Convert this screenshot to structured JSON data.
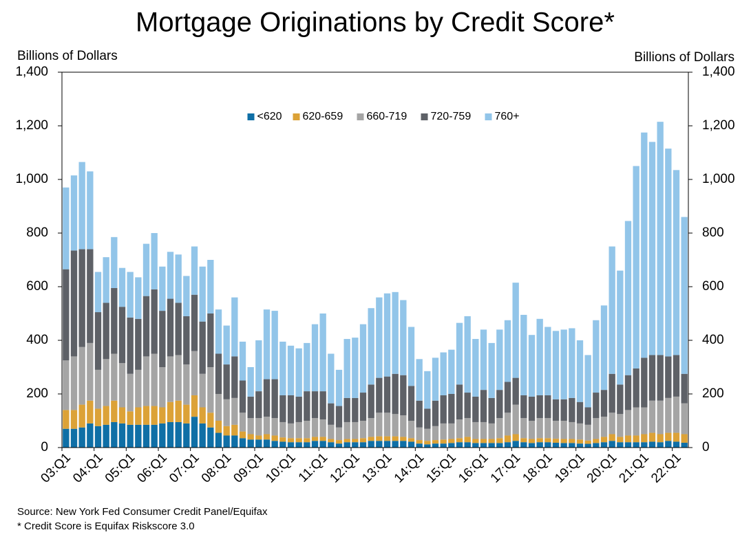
{
  "chart_data": {
    "type": "stacked_bar",
    "title": "Mortgage Originations by Credit Score*",
    "y_label": "Billions of Dollars",
    "y2_label": "Billions of Dollars",
    "source": "Source: New York Fed Consumer Credit Panel/Equifax",
    "note": "* Credit Score is Equifax Riskscore 3.0",
    "categories": [
      "03:Q1",
      null,
      null,
      null,
      "04:Q1",
      null,
      null,
      null,
      "05:Q1",
      null,
      null,
      null,
      "06:Q1",
      null,
      null,
      null,
      "07:Q1",
      null,
      null,
      null,
      "08:Q1",
      null,
      null,
      null,
      "09:Q1",
      null,
      null,
      null,
      "10:Q1",
      null,
      null,
      null,
      "11:Q1",
      null,
      null,
      null,
      "12:Q1",
      null,
      null,
      null,
      "13:Q1",
      null,
      null,
      null,
      "14:Q1",
      null,
      null,
      null,
      "15:Q1",
      null,
      null,
      null,
      "16:Q1",
      null,
      null,
      null,
      "17:Q1",
      null,
      null,
      null,
      "18:Q1",
      null,
      null,
      null,
      "19:Q1",
      null,
      null,
      null,
      "20:Q1",
      null,
      null,
      null,
      "21:Q1",
      null,
      null,
      null,
      "22:Q1",
      null
    ],
    "series": [
      {
        "name": "<620",
        "color": "#0f6fa6",
        "values": [
          70,
          70,
          75,
          90,
          80,
          85,
          95,
          90,
          85,
          85,
          85,
          85,
          90,
          95,
          95,
          90,
          115,
          90,
          75,
          55,
          45,
          45,
          35,
          30,
          30,
          30,
          25,
          22,
          20,
          20,
          20,
          25,
          25,
          20,
          15,
          20,
          20,
          20,
          25,
          25,
          25,
          25,
          25,
          22,
          15,
          12,
          15,
          15,
          17,
          20,
          20,
          17,
          17,
          17,
          17,
          20,
          25,
          20,
          17,
          20,
          20,
          18,
          17,
          17,
          15,
          14,
          17,
          20,
          25,
          20,
          20,
          20,
          20,
          22,
          20,
          25,
          22,
          18
        ]
      },
      {
        "name": "620-659",
        "color": "#dca237",
        "values": [
          70,
          70,
          85,
          85,
          65,
          70,
          80,
          60,
          50,
          65,
          70,
          70,
          60,
          75,
          80,
          70,
          80,
          60,
          55,
          45,
          35,
          40,
          25,
          20,
          15,
          20,
          20,
          16,
          15,
          15,
          15,
          15,
          15,
          12,
          13,
          12,
          12,
          15,
          15,
          17,
          17,
          17,
          15,
          13,
          13,
          13,
          13,
          15,
          15,
          15,
          20,
          15,
          15,
          15,
          18,
          25,
          25,
          15,
          15,
          15,
          15,
          15,
          15,
          15,
          15,
          12,
          15,
          20,
          25,
          20,
          25,
          25,
          30,
          33,
          30,
          30,
          33,
          32
        ]
      },
      {
        "name": "660-719",
        "color": "#a5a5a5",
        "values": [
          185,
          200,
          215,
          215,
          145,
          175,
          175,
          165,
          140,
          140,
          185,
          195,
          150,
          170,
          170,
          150,
          165,
          125,
          170,
          100,
          100,
          100,
          70,
          60,
          65,
          65,
          65,
          57,
          55,
          60,
          65,
          70,
          65,
          53,
          47,
          63,
          63,
          65,
          70,
          88,
          88,
          83,
          80,
          65,
          47,
          45,
          52,
          60,
          58,
          70,
          70,
          63,
          63,
          58,
          75,
          85,
          110,
          75,
          68,
          75,
          75,
          67,
          68,
          63,
          60,
          59,
          78,
          75,
          80,
          85,
          95,
          105,
          100,
          120,
          125,
          130,
          135,
          115
        ]
      },
      {
        "name": "720-759",
        "color": "#5e6167",
        "values": [
          340,
          395,
          365,
          350,
          215,
          210,
          245,
          210,
          210,
          190,
          225,
          240,
          210,
          215,
          195,
          180,
          210,
          195,
          200,
          150,
          130,
          155,
          120,
          80,
          100,
          140,
          145,
          100,
          105,
          95,
          110,
          100,
          105,
          80,
          80,
          90,
          90,
          105,
          125,
          130,
          135,
          150,
          150,
          130,
          100,
          75,
          95,
          105,
          110,
          130,
          95,
          95,
          120,
          95,
          105,
          115,
          100,
          85,
          90,
          85,
          85,
          80,
          80,
          90,
          80,
          65,
          95,
          100,
          145,
          110,
          130,
          145,
          185,
          170,
          170,
          155,
          155,
          110
        ]
      },
      {
        "name": "760+",
        "color": "#92c5e9",
        "values": [
          305,
          280,
          325,
          290,
          150,
          170,
          190,
          145,
          170,
          155,
          195,
          210,
          165,
          175,
          180,
          150,
          180,
          205,
          200,
          165,
          145,
          220,
          145,
          110,
          190,
          260,
          255,
          200,
          185,
          180,
          180,
          250,
          290,
          185,
          135,
          220,
          225,
          255,
          285,
          300,
          310,
          305,
          280,
          220,
          155,
          140,
          160,
          160,
          165,
          230,
          285,
          215,
          225,
          205,
          225,
          230,
          355,
          300,
          230,
          285,
          255,
          255,
          260,
          260,
          230,
          195,
          270,
          315,
          475,
          425,
          575,
          755,
          840,
          795,
          870,
          775,
          690,
          585
        ]
      }
    ],
    "ylim": [
      0,
      1400
    ],
    "yticks": [
      0,
      200,
      400,
      600,
      800,
      {
        "value": 1000,
        "label": "1,000"
      },
      {
        "value": 1200,
        "label": "1,200"
      },
      {
        "value": 1400,
        "label": "1,400"
      }
    ],
    "y2lim": [
      0,
      1400
    ],
    "y2ticks": [
      0,
      200,
      400,
      600,
      800,
      {
        "value": 1000,
        "label": "1,000"
      },
      {
        "value": 1200,
        "label": "1,200"
      },
      {
        "value": 1400,
        "label": "1,400"
      }
    ],
    "legend": "top"
  }
}
